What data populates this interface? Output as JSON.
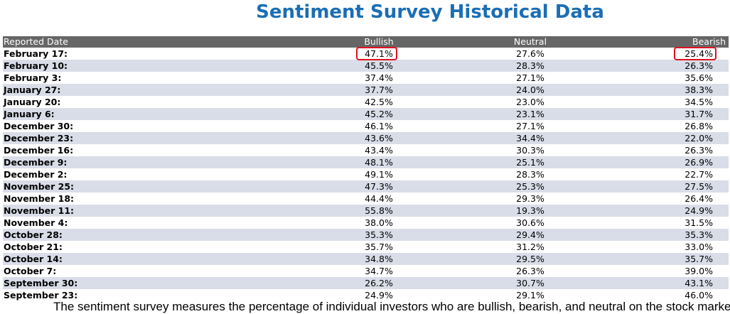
{
  "title": "Sentiment Survey Historical Data",
  "table": {
    "header": [
      "Reported Date",
      "Bullish",
      "Neutral",
      "Bearish"
    ],
    "rows": [
      [
        "February 17:",
        "47.1%",
        "27.6%",
        "25.4%"
      ],
      [
        "February 10:",
        "45.5%",
        "28.3%",
        "26.3%"
      ],
      [
        "February 3:",
        "37.4%",
        "27.1%",
        "35.6%"
      ],
      [
        "January 27:",
        "37.7%",
        "24.0%",
        "38.3%"
      ],
      [
        "January 20:",
        "42.5%",
        "23.0%",
        "34.5%"
      ],
      [
        "January 6:",
        "45.2%",
        "23.1%",
        "31.7%"
      ],
      [
        "December 30:",
        "46.1%",
        "27.1%",
        "26.8%"
      ],
      [
        "December 23:",
        "43.6%",
        "34.4%",
        "22.0%"
      ],
      [
        "December 16:",
        "43.4%",
        "30.3%",
        "26.3%"
      ],
      [
        "December 9:",
        "48.1%",
        "25.1%",
        "26.9%"
      ],
      [
        "December 2:",
        "49.1%",
        "28.3%",
        "22.7%"
      ],
      [
        "November 25:",
        "47.3%",
        "25.3%",
        "27.5%"
      ],
      [
        "November 18:",
        "44.4%",
        "29.3%",
        "26.4%"
      ],
      [
        "November 11:",
        "55.8%",
        "19.3%",
        "24.9%"
      ],
      [
        "November 4:",
        "38.0%",
        "30.6%",
        "31.5%"
      ],
      [
        "October 28:",
        "35.3%",
        "29.4%",
        "35.3%"
      ],
      [
        "October 21:",
        "35.7%",
        "31.2%",
        "33.0%"
      ],
      [
        "October 14:",
        "34.8%",
        "29.5%",
        "35.7%"
      ],
      [
        "October 7:",
        "34.7%",
        "26.3%",
        "39.0%"
      ],
      [
        "September 30:",
        "26.2%",
        "30.7%",
        "43.1%"
      ],
      [
        "September 23:",
        "24.9%",
        "29.1%",
        "46.0%"
      ]
    ]
  },
  "footer": "The sentiment survey measures the percentage of individual investors who are bullish, bearish, and neutral on the stock market"
}
